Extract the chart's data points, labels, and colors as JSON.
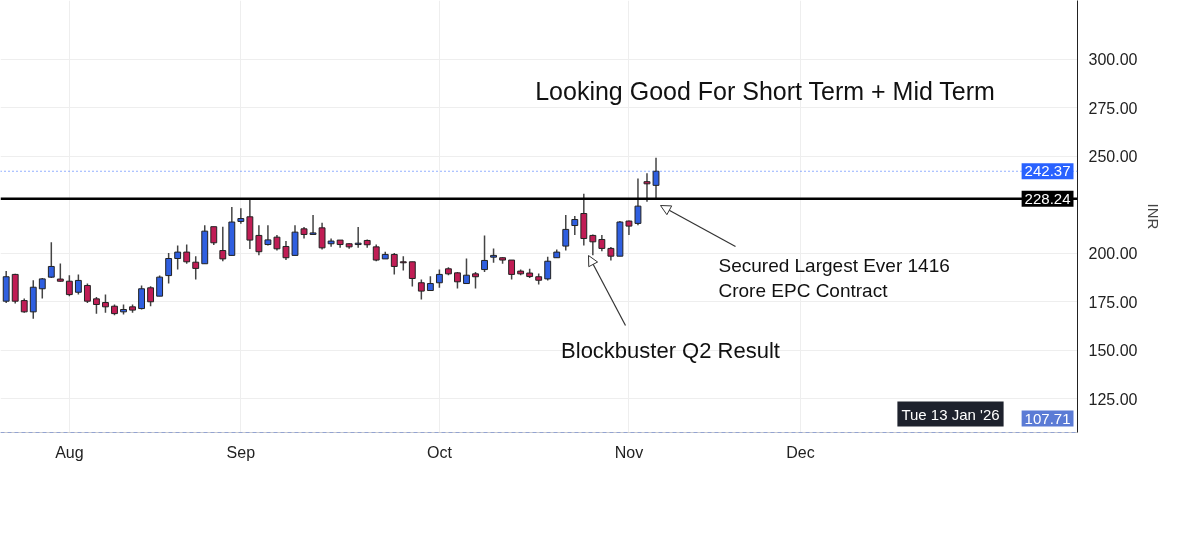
{
  "chart_data": {
    "type": "candlestick",
    "categories": [
      null,
      null,
      null,
      null,
      null,
      null,
      null,
      "Aug",
      null,
      null,
      null,
      null,
      null,
      null,
      null,
      null,
      null,
      null,
      null,
      null,
      null,
      null,
      null,
      null,
      null,
      null,
      "Sep",
      null,
      null,
      null,
      null,
      null,
      null,
      null,
      null,
      null,
      null,
      null,
      null,
      null,
      null,
      null,
      null,
      null,
      null,
      null,
      null,
      null,
      "Oct",
      null,
      null,
      null,
      null,
      null,
      null,
      null,
      null,
      null,
      null,
      null,
      null,
      null,
      null,
      null,
      null,
      null,
      null,
      null,
      null,
      "Nov",
      null,
      null,
      null,
      null,
      null,
      null,
      null,
      null,
      null,
      null,
      null,
      null,
      null,
      null,
      null,
      null,
      null,
      null,
      "Dec",
      null,
      null,
      null,
      null,
      null,
      null,
      null,
      null,
      null,
      null,
      null,
      null,
      null,
      null,
      null,
      null,
      null,
      null,
      null,
      null,
      null,
      null,
      null,
      null,
      null,
      null,
      null,
      null,
      null,
      null
    ],
    "ohlc": [
      [
        175.4,
        190.9,
        174.5,
        188.0
      ],
      [
        189.2,
        189.5,
        174.2,
        175.4
      ],
      [
        175.7,
        176.8,
        169.4,
        169.9
      ],
      [
        169.9,
        186.2,
        166.3,
        182.6
      ],
      [
        181.8,
        187.4,
        176.8,
        186.9
      ],
      [
        187.8,
        205.8,
        187.4,
        193.3
      ],
      [
        186.8,
        194.8,
        185.4,
        185.7
      ],
      [
        185.7,
        188.8,
        178.0,
        178.8
      ],
      [
        180.0,
        189.2,
        178.8,
        186.1
      ],
      [
        183.5,
        184.5,
        174.5,
        175.4
      ],
      [
        176.6,
        177.6,
        168.9,
        173.7
      ],
      [
        174.7,
        178.8,
        169.4,
        172.5
      ],
      [
        172.8,
        173.7,
        168.2,
        169.0
      ],
      [
        169.9,
        173.7,
        168.5,
        171.1
      ],
      [
        172.5,
        173.7,
        169.4,
        170.8
      ],
      [
        171.6,
        183.5,
        171.1,
        181.8
      ],
      [
        182.3,
        183.1,
        172.8,
        175.1
      ],
      [
        178.0,
        188.6,
        178.0,
        187.8
      ],
      [
        188.6,
        200.3,
        184.5,
        197.4
      ],
      [
        197.4,
        204.1,
        191.7,
        200.7
      ],
      [
        200.7,
        204.6,
        194.7,
        195.7
      ],
      [
        195.5,
        198.6,
        186.6,
        192.3
      ],
      [
        194.7,
        214.6,
        194.7,
        211.5
      ],
      [
        213.8,
        213.8,
        204.3,
        205.5
      ],
      [
        201.5,
        213.8,
        196.0,
        197.2
      ],
      [
        199.0,
        223.9,
        199.0,
        216.2
      ],
      [
        216.5,
        223.3,
        215.3,
        218.0
      ],
      [
        218.9,
        228.4,
        202.3,
        206.9
      ],
      [
        209.3,
        214.6,
        199.1,
        200.9
      ],
      [
        204.6,
        214.6,
        204.1,
        207.0
      ],
      [
        208.4,
        209.5,
        201.5,
        202.4
      ],
      [
        203.6,
        206.4,
        196.6,
        197.8
      ],
      [
        199.0,
        214.6,
        199.0,
        211.0
      ],
      [
        212.7,
        213.6,
        207.7,
        209.8
      ],
      [
        209.8,
        219.8,
        209.8,
        210.6
      ],
      [
        213.2,
        215.8,
        202.1,
        202.9
      ],
      [
        205.0,
        207.7,
        203.4,
        206.4
      ],
      [
        206.9,
        206.9,
        202.9,
        204.6
      ],
      [
        205.0,
        205.3,
        202.4,
        203.4
      ],
      [
        204.6,
        213.6,
        202.9,
        205.3
      ],
      [
        206.7,
        207.2,
        202.9,
        204.5
      ],
      [
        203.4,
        204.6,
        196.0,
        196.6
      ],
      [
        197.2,
        200.9,
        197.2,
        199.5
      ],
      [
        199.5,
        200.3,
        189.2,
        193.3
      ],
      [
        195.7,
        198.5,
        191.2,
        195.2
      ],
      [
        195.7,
        195.7,
        183.0,
        187.1
      ],
      [
        184.9,
        186.6,
        176.3,
        180.6
      ],
      [
        180.9,
        188.3,
        180.9,
        184.5
      ],
      [
        184.9,
        191.7,
        182.3,
        189.2
      ],
      [
        192.1,
        192.9,
        188.8,
        189.5
      ],
      [
        190.0,
        190.5,
        181.9,
        185.4
      ],
      [
        184.5,
        197.4,
        184.5,
        188.8
      ],
      [
        189.5,
        190.5,
        181.9,
        188.0
      ],
      [
        191.7,
        209.3,
        190.5,
        196.4
      ],
      [
        198.1,
        202.6,
        195.2,
        199.0
      ],
      [
        197.8,
        198.1,
        194.7,
        196.6
      ],
      [
        196.6,
        196.6,
        186.6,
        189.2
      ],
      [
        190.9,
        191.7,
        188.8,
        189.5
      ],
      [
        189.9,
        192.1,
        187.4,
        188.1
      ],
      [
        188.0,
        189.7,
        184.0,
        186.2
      ],
      [
        186.9,
        198.3,
        186.1,
        196.0
      ],
      [
        197.8,
        202.1,
        197.8,
        200.7
      ],
      [
        203.8,
        219.8,
        201.5,
        212.4
      ],
      [
        214.4,
        219.3,
        209.5,
        217.5
      ],
      [
        220.6,
        230.8,
        204.1,
        207.7
      ],
      [
        209.3,
        209.8,
        199.1,
        206.0
      ],
      [
        207.2,
        209.5,
        201.2,
        202.6
      ],
      [
        202.6,
        203.3,
        196.4,
        198.6
      ],
      [
        198.6,
        216.7,
        198.6,
        216.2
      ],
      [
        216.7,
        217.0,
        209.5,
        214.1
      ],
      [
        215.5,
        238.7,
        214.6,
        224.4
      ],
      [
        237.0,
        241.3,
        226.7,
        235.9
      ],
      [
        235.1,
        249.4,
        228.2,
        242.37
      ],
      null,
      null,
      null,
      null,
      null,
      null,
      null,
      null,
      null,
      null,
      null,
      null,
      null,
      null,
      null,
      null,
      null,
      null,
      null,
      null,
      null,
      null,
      null,
      null,
      null,
      null,
      null,
      null,
      null,
      null,
      null,
      null,
      null,
      null,
      null,
      null,
      null,
      null,
      null,
      null,
      null,
      null,
      null,
      null,
      null,
      null
    ],
    "colors": [
      "#2f5fe0",
      "#c01d55",
      "#c01d55",
      "#2f5fe0",
      "#2f5fe0",
      "#2f5fe0",
      "#c01d55",
      "#c01d55",
      "#2f5fe0",
      "#c01d55",
      "#c01d55",
      "#c01d55",
      "#c01d55",
      "#2f5fe0",
      "#c01d55",
      "#2f5fe0",
      "#c01d55",
      "#2f5fe0",
      "#2f5fe0",
      "#2f5fe0",
      "#c01d55",
      "#c01d55",
      "#2f5fe0",
      "#c01d55",
      "#c01d55",
      "#2f5fe0",
      "#2f5fe0",
      "#c01d55",
      "#c01d55",
      "#2f5fe0",
      "#c01d55",
      "#c01d55",
      "#2f5fe0",
      "#c01d55",
      "#2f5fe0",
      "#c01d55",
      "#2f5fe0",
      "#c01d55",
      "#c01d55",
      "#2f5fe0",
      "#c01d55",
      "#c01d55",
      "#2f5fe0",
      "#c01d55",
      "#c01d55",
      "#c01d55",
      "#c01d55",
      "#2f5fe0",
      "#2f5fe0",
      "#c01d55",
      "#c01d55",
      "#2f5fe0",
      "#c01d55",
      "#2f5fe0",
      "#2f5fe0",
      "#c01d55",
      "#c01d55",
      "#c01d55",
      "#c01d55",
      "#c01d55",
      "#2f5fe0",
      "#2f5fe0",
      "#2f5fe0",
      "#2f5fe0",
      "#c01d55",
      "#c01d55",
      "#c01d55",
      "#c01d55",
      "#2f5fe0",
      "#c01d55",
      "#2f5fe0",
      "#c01d55",
      "#2f5fe0",
      null,
      null,
      null,
      null,
      null,
      null,
      null,
      null,
      null,
      null,
      null,
      null,
      null,
      null,
      null,
      null,
      null,
      null,
      null,
      null,
      null,
      null,
      null,
      null,
      null,
      null,
      null,
      null,
      null,
      null,
      null,
      null,
      null,
      null,
      null,
      null,
      null,
      null,
      null,
      null,
      null,
      null,
      null,
      null,
      null,
      null
    ],
    "ylim": [
      107.71,
      330.4
    ],
    "yticks": [
      {
        "value": 125,
        "label": "125.00"
      },
      {
        "value": 150,
        "label": "150.00"
      },
      {
        "value": 175,
        "label": "175.00"
      },
      {
        "value": 200,
        "label": "200.00"
      },
      {
        "value": 250,
        "label": "250.00"
      },
      {
        "value": 275,
        "label": "275.00"
      },
      {
        "value": 300,
        "label": "300.00"
      }
    ],
    "ylabel": "INR",
    "grid": true,
    "ref_lines": [
      {
        "axis": "y",
        "value": 242.37,
        "label": "242.37",
        "color": "#2962ff",
        "line_style": "dotted"
      },
      {
        "axis": "y",
        "value": 228.24,
        "label": "228.24",
        "color": "#000000",
        "line_style": "solid"
      },
      {
        "axis": "y",
        "value": 107.71,
        "label": "107.71",
        "color": "#5b7bd5",
        "line_style": "dashed"
      }
    ],
    "annotations": [
      "Looking Good For Short Term + Mid Term",
      "Blockbuster Q2 Result",
      "Secured Largest Ever 1416\nCrore EPC Contract",
      "Tue 13 Jan '26"
    ]
  }
}
